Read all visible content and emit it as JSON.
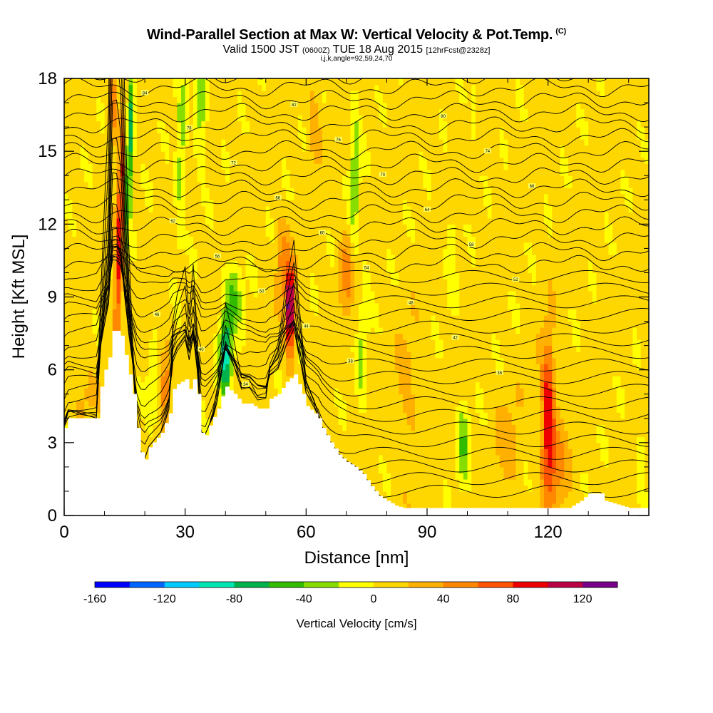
{
  "title": {
    "main": "Wind-Parallel Section at Max W: Vertical Velocity & Pot.Temp.",
    "copyright": "(C)",
    "valid_prefix": "Valid 1500 JST",
    "valid_z": "(0600Z)",
    "valid_date": "TUE 18 Aug 2015",
    "forecast": "[12hrFcst@2328z]",
    "indices": "i,j,k,angle=92,59,24,70"
  },
  "chart_data": {
    "type": "heatmap",
    "xlabel": "Distance [nm]",
    "ylabel": "Height [Kft MSL]",
    "xlim": [
      0,
      145
    ],
    "ylim": [
      0,
      18
    ],
    "x_ticks": [
      0,
      30,
      60,
      90,
      120
    ],
    "y_ticks": [
      0,
      3,
      6,
      9,
      12,
      15,
      18
    ],
    "colorbar": {
      "label": "Vertical Velocity [cm/s]",
      "ticks": [
        -160,
        -120,
        -80,
        -40,
        0,
        40,
        80,
        120
      ],
      "bounds": [
        -160,
        140
      ],
      "step": 20,
      "colors": [
        "#0000ff",
        "#0066ff",
        "#00ccff",
        "#00e6b3",
        "#00b34d",
        "#33bb00",
        "#88dd00",
        "#ffff00",
        "#ffd700",
        "#ffb000",
        "#ff8800",
        "#ff5500",
        "#ee0000",
        "#bb0044",
        "#770088"
      ]
    },
    "terrain_kft": [
      [
        0,
        3.6
      ],
      [
        1,
        4.0
      ],
      [
        5,
        4.0
      ],
      [
        8,
        4.0
      ],
      [
        9,
        5.3
      ],
      [
        10,
        6.0
      ],
      [
        11,
        6.5
      ],
      [
        12,
        7.6
      ],
      [
        13,
        7.6
      ],
      [
        14,
        7.4
      ],
      [
        15,
        6.6
      ],
      [
        16,
        5.8
      ],
      [
        17,
        5.0
      ],
      [
        18,
        3.6
      ],
      [
        19,
        2.6
      ],
      [
        20,
        2.3
      ],
      [
        21,
        2.8
      ],
      [
        22,
        3.0
      ],
      [
        24,
        3.4
      ],
      [
        26,
        4.2
      ],
      [
        27,
        5.2
      ],
      [
        28,
        5.4
      ],
      [
        30,
        5.6
      ],
      [
        31,
        5.2
      ],
      [
        32,
        5.6
      ],
      [
        33,
        5.0
      ],
      [
        34,
        3.4
      ],
      [
        35,
        3.3
      ],
      [
        36,
        3.7
      ],
      [
        38,
        4.4
      ],
      [
        39,
        4.9
      ],
      [
        40,
        5.3
      ],
      [
        42,
        5.0
      ],
      [
        44,
        4.6
      ],
      [
        46,
        4.6
      ],
      [
        48,
        4.4
      ],
      [
        49,
        4.4
      ],
      [
        50,
        4.4
      ],
      [
        51,
        4.8
      ],
      [
        53,
        5.0
      ],
      [
        55,
        5.5
      ],
      [
        57,
        5.8
      ],
      [
        59,
        5.0
      ],
      [
        60,
        4.5
      ],
      [
        62,
        4.2
      ],
      [
        63,
        4.0
      ],
      [
        64,
        3.6
      ],
      [
        66,
        3.0
      ],
      [
        68,
        2.5
      ],
      [
        70,
        2.2
      ],
      [
        72,
        2.0
      ],
      [
        74,
        1.7
      ],
      [
        76,
        1.2
      ],
      [
        78,
        0.8
      ],
      [
        80,
        0.6
      ],
      [
        82,
        0.4
      ],
      [
        84,
        0.3
      ],
      [
        100,
        0.3
      ],
      [
        110,
        0.3
      ],
      [
        125,
        0.3
      ],
      [
        128,
        0.6
      ],
      [
        130,
        0.9
      ],
      [
        133,
        0.9
      ],
      [
        134,
        0.6
      ],
      [
        140,
        0.3
      ],
      [
        145,
        0.3
      ]
    ],
    "w_cells": [
      {
        "x": 14,
        "y": 12,
        "sx": 1.0,
        "sy": 5.0,
        "v": 100,
        "tilt": 0.22
      },
      {
        "x": 16,
        "y": 15,
        "sx": 1.0,
        "sy": 3.5,
        "v": -100,
        "tilt": 0.18
      },
      {
        "x": 12,
        "y": 17,
        "sx": 1.0,
        "sy": 1.5,
        "v": 60,
        "tilt": 0
      },
      {
        "x": 29,
        "y": 15,
        "sx": 1.2,
        "sy": 3.5,
        "v": -40,
        "tilt": 0.12
      },
      {
        "x": 34,
        "y": 17,
        "sx": 1.5,
        "sy": 2.0,
        "v": -50,
        "tilt": 0.1
      },
      {
        "x": 40,
        "y": 6.5,
        "sx": 1.5,
        "sy": 1.7,
        "v": -100,
        "tilt": 0
      },
      {
        "x": 42,
        "y": 9.0,
        "sx": 2.0,
        "sy": 1.5,
        "v": -50,
        "tilt": 0
      },
      {
        "x": 56,
        "y": 8.5,
        "sx": 1.1,
        "sy": 1.8,
        "v": 140,
        "tilt": 0
      },
      {
        "x": 54,
        "y": 10.5,
        "sx": 1.5,
        "sy": 1.5,
        "v": 40,
        "tilt": 0
      },
      {
        "x": 72,
        "y": 14,
        "sx": 1.2,
        "sy": 3.5,
        "v": -40,
        "tilt": 0.08
      },
      {
        "x": 74,
        "y": 7,
        "sx": 1.2,
        "sy": 3.0,
        "v": -30,
        "tilt": 0.15
      },
      {
        "x": 70,
        "y": 10,
        "sx": 1.8,
        "sy": 1.6,
        "v": 45,
        "tilt": 0
      },
      {
        "x": 99,
        "y": 3,
        "sx": 1.5,
        "sy": 1.8,
        "v": -45,
        "tilt": 0
      },
      {
        "x": 120,
        "y": 4.2,
        "sx": 1.6,
        "sy": 3.0,
        "v": 90,
        "tilt": 0
      },
      {
        "x": 122,
        "y": 2.0,
        "sx": 3.0,
        "sy": 2.0,
        "v": 35,
        "tilt": 0
      },
      {
        "x": 96,
        "y": 11,
        "sx": 1.2,
        "sy": 2.0,
        "v": -25,
        "tilt": 0
      },
      {
        "x": 102,
        "y": 17,
        "sx": 1.2,
        "sy": 1.5,
        "v": -20,
        "tilt": 0
      },
      {
        "x": 22,
        "y": 5,
        "sx": 1.4,
        "sy": 1.5,
        "v": -25,
        "tilt": 0
      },
      {
        "x": 25,
        "y": 5.5,
        "sx": 1.2,
        "sy": 1.5,
        "v": 50,
        "tilt": 0
      },
      {
        "x": 5,
        "y": 5,
        "sx": 3.0,
        "sy": 1.5,
        "v": 20,
        "tilt": 0
      },
      {
        "x": 85,
        "y": 5,
        "sx": 2.5,
        "sy": 3.0,
        "v": 20,
        "tilt": 0
      },
      {
        "x": 110,
        "y": 3,
        "sx": 3.0,
        "sy": 2.0,
        "v": 20,
        "tilt": 0
      },
      {
        "x": 143,
        "y": 2.5,
        "sx": 1.0,
        "sy": 1.5,
        "v": -30,
        "tilt": 0
      },
      {
        "x": 62,
        "y": 16,
        "sx": 1.5,
        "sy": 2.0,
        "v": 25,
        "tilt": 0
      }
    ],
    "theta_isentropes": {
      "count": 34,
      "contour_labels": [
        "84",
        "82",
        "80",
        "78",
        "76",
        "74",
        "72",
        "70",
        "68",
        "66",
        "64",
        "62",
        "60",
        "58",
        "56",
        "54",
        "52",
        "50",
        "48",
        "46",
        "44",
        "42",
        "40",
        "38",
        "36",
        "34"
      ]
    }
  }
}
